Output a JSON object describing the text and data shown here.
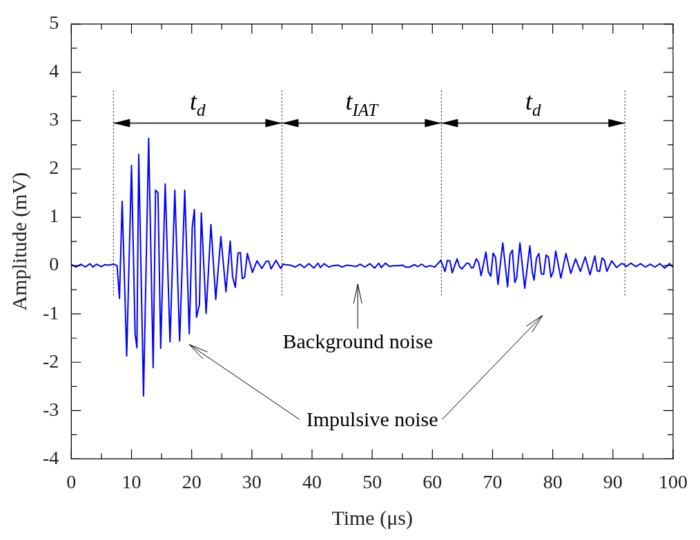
{
  "chart_data": {
    "type": "line",
    "xlabel": "Time (μs)",
    "ylabel": "Amplitude (mV)",
    "xlim": [
      0,
      100
    ],
    "ylim": [
      -4,
      5
    ],
    "xticks": [
      0,
      {
        "value": 5,
        "label": null
      },
      10,
      {
        "value": 15,
        "label": null
      },
      20,
      {
        "value": 25,
        "label": null
      },
      30,
      {
        "value": 35,
        "label": null
      },
      40,
      {
        "value": 45,
        "label": null
      },
      50,
      {
        "value": 55,
        "label": null
      },
      60,
      {
        "value": 65,
        "label": null
      },
      70,
      {
        "value": 75,
        "label": null
      },
      80,
      {
        "value": 85,
        "label": null
      },
      90,
      {
        "value": 95,
        "label": null
      },
      100
    ],
    "yticks": [
      -4,
      {
        "value": -3.5,
        "label": null
      },
      -3,
      {
        "value": -2.5,
        "label": null
      },
      -2,
      {
        "value": -1.5,
        "label": null
      },
      -1,
      {
        "value": -0.5,
        "label": null
      },
      0,
      {
        "value": 0.5,
        "label": null
      },
      1,
      {
        "value": 1.5,
        "label": null
      },
      2,
      {
        "value": 2.5,
        "label": null
      },
      3,
      {
        "value": 3.5,
        "label": null
      },
      4,
      {
        "value": 4.5,
        "label": null
      },
      5
    ],
    "grid": false,
    "legend": false,
    "marker": "none",
    "line_style": "solid",
    "series": [
      {
        "color": "#0000ff",
        "x": [
          0,
          0.8,
          1.6,
          2.3,
          3.1,
          3.6,
          4.2,
          5.0,
          5.6,
          6.2,
          7.0,
          7.6,
          8.0,
          8.45,
          9.2,
          10.0,
          10.6,
          10.9,
          11.2,
          12.0,
          12.85,
          13.6,
          14.0,
          14.4,
          14.85,
          15.6,
          16.4,
          17.2,
          18.0,
          18.85,
          19.6,
          20.1,
          20.45,
          20.8,
          21.3,
          21.6,
          22.4,
          23.2,
          24.0,
          24.85,
          25.7,
          26.4,
          26.8,
          27.25,
          27.7,
          28.1,
          28.4,
          28.8,
          29.25,
          30.1,
          30.85,
          31.65,
          32.4,
          32.8,
          33.2,
          34.0,
          34.8,
          35.2,
          35.6,
          36.4,
          37.2,
          38.0,
          38.7,
          39.5,
          40.3,
          41.0,
          41.4,
          42.0,
          42.8,
          43.5,
          44.3,
          45.0,
          45.8,
          46.5,
          47.3,
          48.0,
          48.8,
          49.6,
          50.4,
          51.1,
          51.5,
          52.2,
          52.9,
          53.6,
          54.4,
          55.1,
          55.5,
          56.2,
          57.0,
          57.6,
          58.2,
          58.9,
          59.6,
          60.4,
          61.4,
          62.1,
          62.5,
          62.9,
          63.3,
          64.1,
          64.5,
          64.9,
          65.7,
          66.1,
          66.5,
          66.8,
          67.3,
          67.7,
          68.1,
          68.9,
          69.3,
          69.7,
          70.1,
          70.5,
          70.9,
          71.7,
          72.5,
          72.9,
          73.3,
          73.7,
          74.0,
          74.55,
          75.35,
          76.2,
          76.6,
          76.9,
          77.3,
          77.7,
          78.1,
          78.5,
          78.9,
          79.3,
          79.7,
          80.1,
          80.5,
          81.35,
          82.2,
          83.0,
          83.8,
          84.6,
          85.4,
          86.2,
          87.0,
          87.4,
          87.8,
          88.2,
          88.6,
          89.0,
          89.8,
          90.6,
          91.4,
          91.8,
          92.2,
          93.0,
          93.8,
          94.6,
          95.4,
          96.2,
          97.0,
          97.8,
          98.6,
          99.4,
          100
        ],
        "values": [
          0.02,
          -0.03,
          0.03,
          -0.03,
          0.04,
          -0.03,
          0.03,
          -0.02,
          0.02,
          0.01,
          0.03,
          0,
          -0.68,
          1.33,
          -1.87,
          2.07,
          -1.42,
          -1.7,
          2.3,
          -2.7,
          2.63,
          -2.11,
          1.56,
          1.51,
          -1.71,
          1.69,
          -1.58,
          1.56,
          -1.56,
          1.56,
          -1.41,
          0.8,
          1.16,
          -1.07,
          -0.8,
          1.09,
          -0.99,
          0.85,
          -0.7,
          0.6,
          -0.54,
          0.51,
          -0.23,
          -0.45,
          0.26,
          0.27,
          -0.27,
          -0.24,
          0.25,
          -0.14,
          0.1,
          -0.06,
          0.09,
          0.09,
          -0.07,
          0.11,
          -0.06,
          0.03,
          0.02,
          0.01,
          -0.03,
          0.03,
          -0.04,
          0.04,
          -0.05,
          0.05,
          -0.04,
          0.04,
          -0.03,
          0,
          0.01,
          -0.03,
          0.01,
          0,
          -0.02,
          0.03,
          -0.03,
          0.04,
          -0.05,
          0.05,
          -0.04,
          0.05,
          -0.02,
          0,
          0,
          0.01,
          -0.03,
          -0.03,
          0.02,
          -0.02,
          0.03,
          -0.03,
          0,
          -0.03,
          0.11,
          -0.12,
          0.11,
          0.1,
          -0.15,
          0.14,
          -0.02,
          -0.07,
          0.05,
          0.04,
          -0.05,
          -0.04,
          0.14,
          0.06,
          -0.21,
          0.28,
          -0.13,
          -0.22,
          0.26,
          0.17,
          -0.39,
          0.47,
          -0.44,
          0.23,
          0.32,
          -0.35,
          -0.26,
          0.47,
          -0.47,
          0.41,
          -0.13,
          -0.3,
          0.16,
          0.25,
          -0.17,
          -0.18,
          0.22,
          0.17,
          -0.24,
          -0.12,
          0.3,
          -0.26,
          0.25,
          -0.16,
          0.14,
          -0.12,
          0.18,
          -0.19,
          0.2,
          -0.11,
          -0.12,
          0.16,
          0.11,
          -0.12,
          0.1,
          -0.04,
          0.04,
          0.03,
          -0.02,
          0.05,
          -0.02,
          0.04,
          -0.03,
          0.03,
          -0.03,
          0.04,
          -0.05,
          0.04,
          -0.03
        ]
      }
    ],
    "ref_lines": [
      {
        "axis": "x",
        "value": 7,
        "line_style": "dotted",
        "color": "#000000"
      },
      {
        "axis": "x",
        "value": 35,
        "line_style": "dotted",
        "color": "#000000"
      },
      {
        "axis": "x",
        "value": 61.5,
        "line_style": "dotted",
        "color": "#000000"
      },
      {
        "axis": "x",
        "value": 92,
        "line_style": "dotted",
        "color": "#000000"
      }
    ],
    "annotations": [
      "t$_{d}$",
      "t$_{IAT}$",
      "t$_{d}$",
      "Background noise",
      "Impulsive noise"
    ]
  }
}
